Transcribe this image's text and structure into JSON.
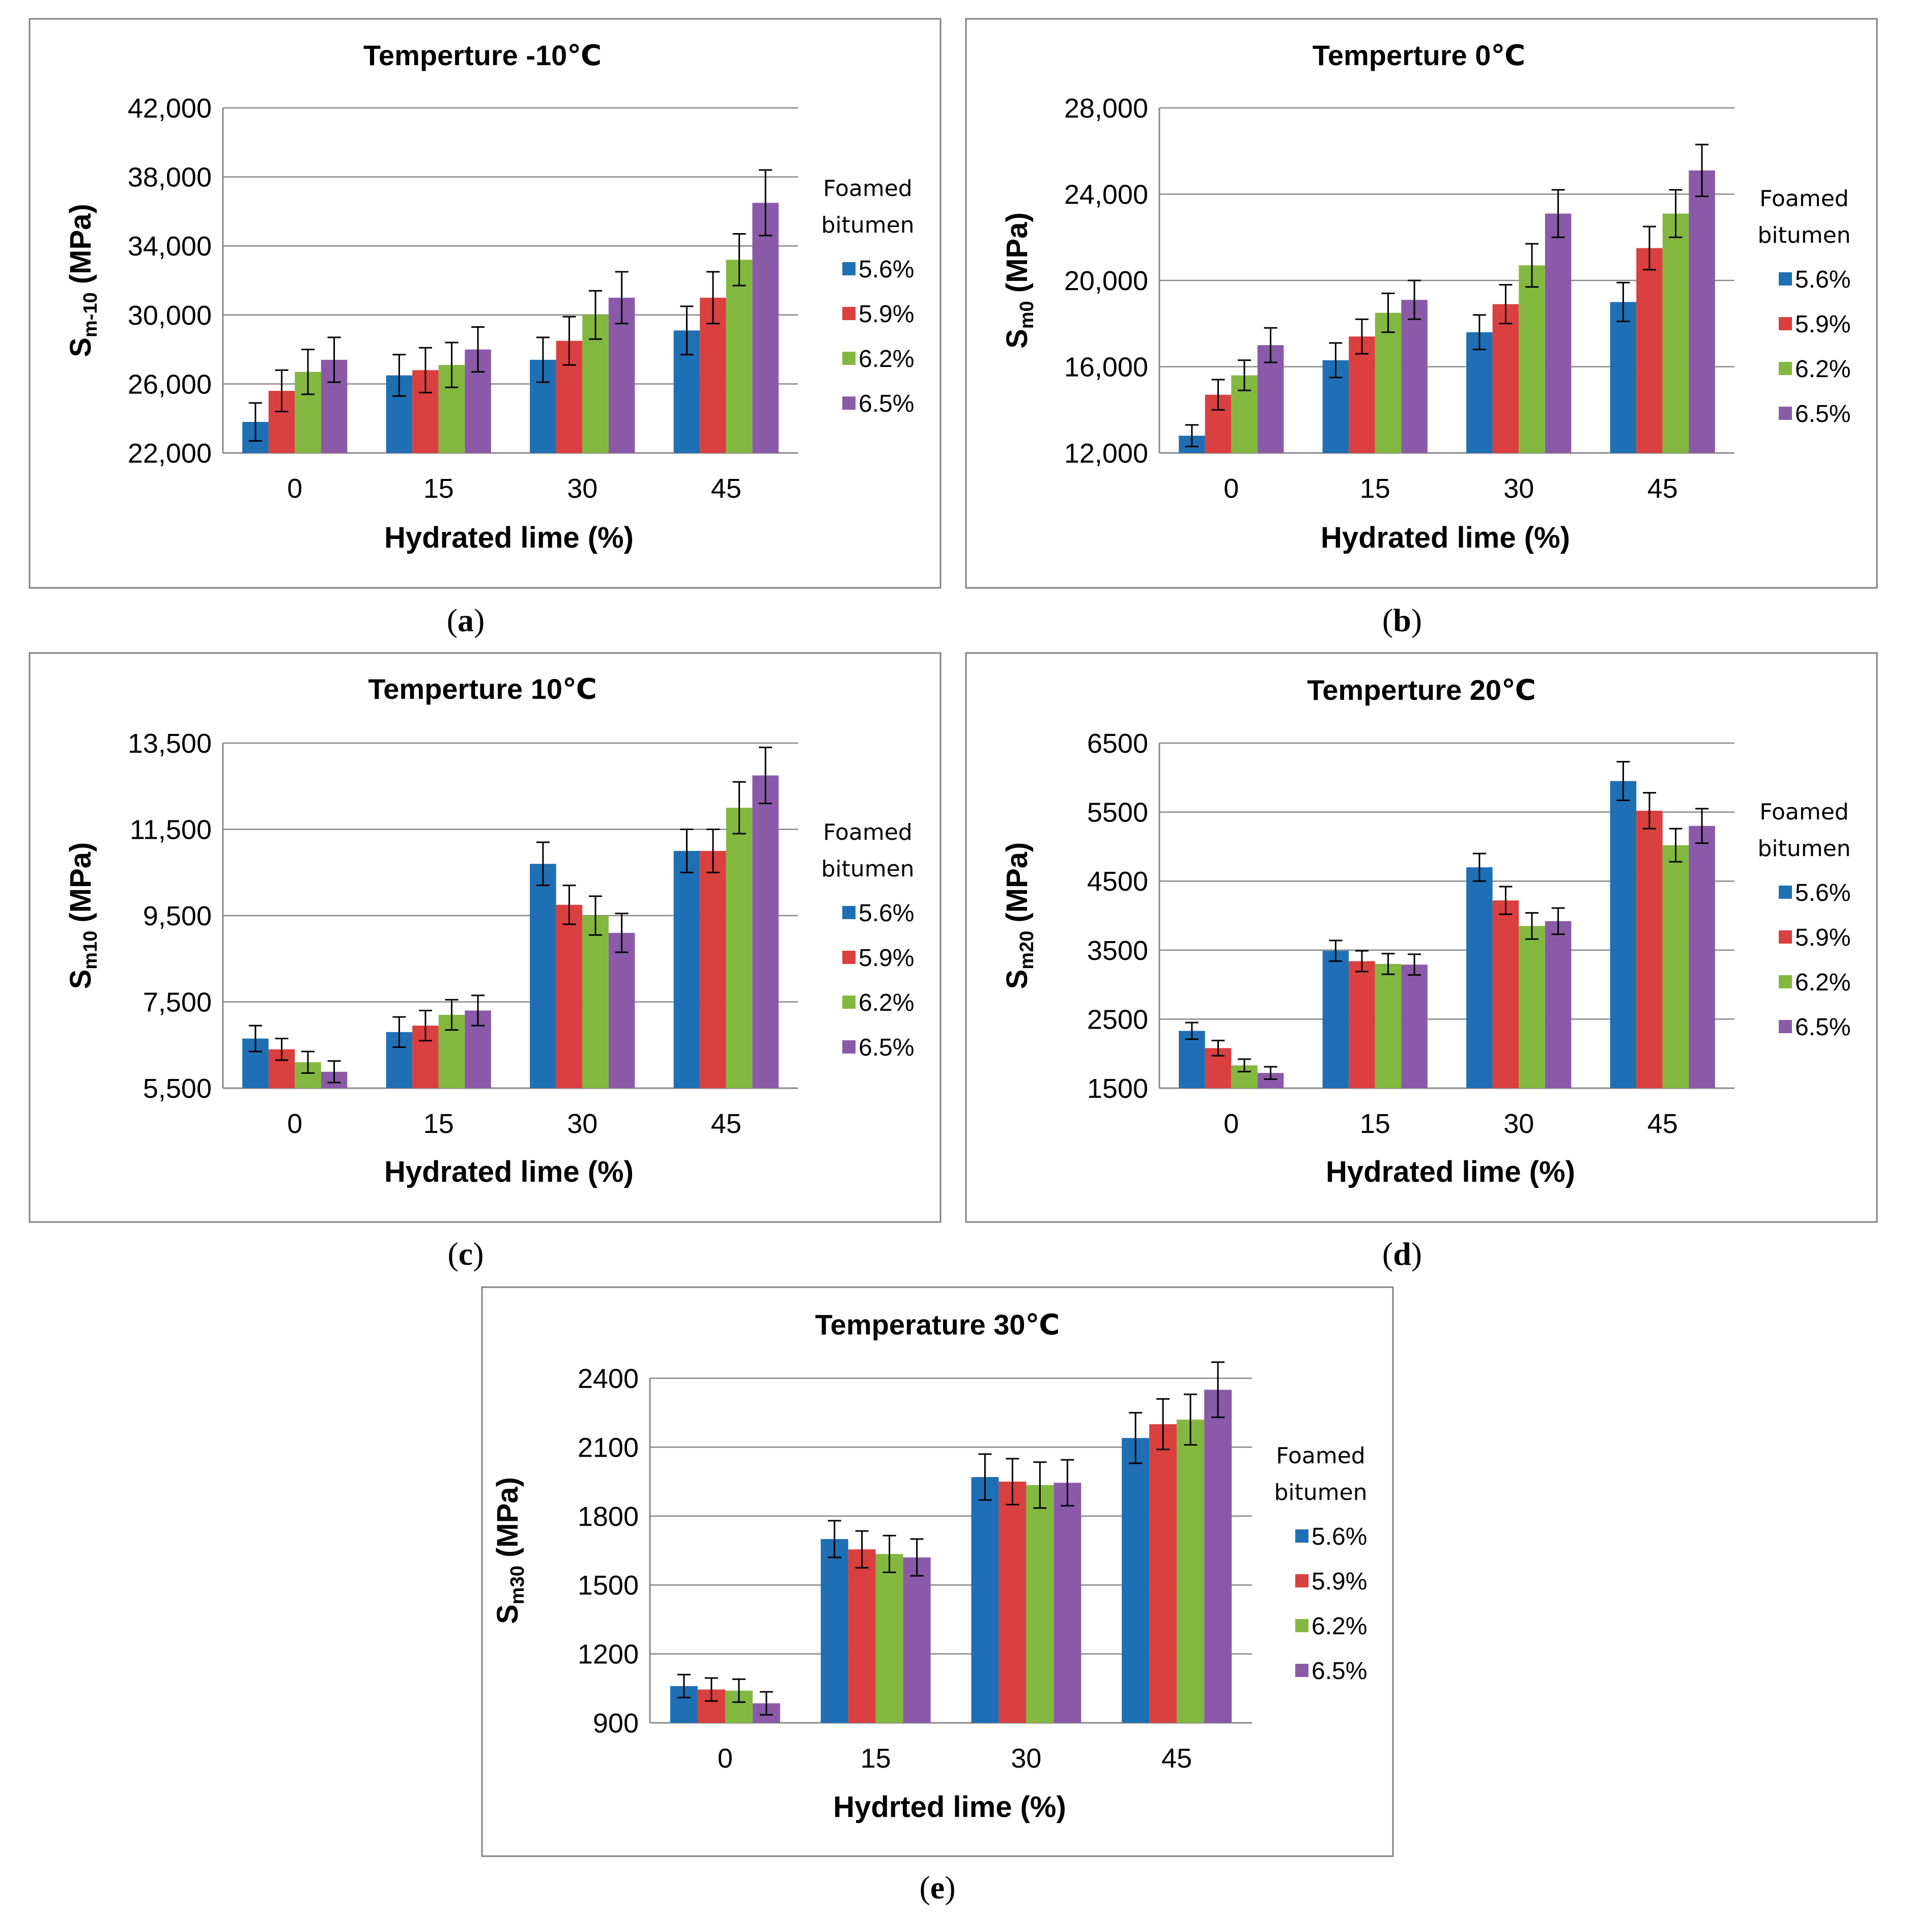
{
  "legend_title_line1": "Foamed",
  "legend_title_line2": "bitumen",
  "colors": {
    "series": [
      "#1f6fb4",
      "#d9403f",
      "#83b840",
      "#8a5aa8"
    ],
    "grid": "#888888",
    "axis": "#888888",
    "frame": "#808080",
    "errorbar": "#000000"
  },
  "chart_data": [
    {
      "type": "bar",
      "title": "Temperture -10℃",
      "ylabel_main": "S",
      "ylabel_sub": "m-10",
      "ylabel_unit": " (MPa)",
      "xlabel": "Hydrated lime (%)",
      "caption_letter": "a",
      "categories": [
        "0",
        "15",
        "30",
        "45"
      ],
      "ylim": [
        22000,
        42000
      ],
      "yticks": [
        22000,
        26000,
        30000,
        34000,
        38000,
        42000
      ],
      "ytick_labels": [
        "22,000",
        "26,000",
        "30,000",
        "34,000",
        "38,000",
        "42,000"
      ],
      "series": [
        {
          "name": "5.6%",
          "values": [
            23800,
            26500,
            27400,
            29100
          ],
          "errors": [
            1100,
            1200,
            1300,
            1400
          ]
        },
        {
          "name": "5.9%",
          "values": [
            25600,
            26800,
            28500,
            31000
          ],
          "errors": [
            1200,
            1300,
            1400,
            1500
          ]
        },
        {
          "name": "6.2%",
          "values": [
            26700,
            27100,
            30000,
            33200
          ],
          "errors": [
            1300,
            1300,
            1400,
            1500
          ]
        },
        {
          "name": "6.5%",
          "values": [
            27400,
            28000,
            31000,
            36500
          ],
          "errors": [
            1300,
            1300,
            1500,
            1900
          ]
        }
      ],
      "grid": true,
      "legend": "right"
    },
    {
      "type": "bar",
      "title": "Temperture 0℃",
      "ylabel_main": "S",
      "ylabel_sub": "m0",
      "ylabel_unit": " (MPa)",
      "xlabel": "Hydrated lime (%)",
      "caption_letter": "b",
      "categories": [
        "0",
        "15",
        "30",
        "45"
      ],
      "ylim": [
        12000,
        28000
      ],
      "yticks": [
        12000,
        16000,
        20000,
        24000,
        28000
      ],
      "ytick_labels": [
        "12,000",
        "16,000",
        "20,000",
        "24,000",
        "28,000"
      ],
      "series": [
        {
          "name": "5.6%",
          "values": [
            12800,
            16300,
            17600,
            19000
          ],
          "errors": [
            500,
            800,
            800,
            900
          ]
        },
        {
          "name": "5.9%",
          "values": [
            14700,
            17400,
            18900,
            21500
          ],
          "errors": [
            700,
            800,
            900,
            1000
          ]
        },
        {
          "name": "6.2%",
          "values": [
            15600,
            18500,
            20700,
            23100
          ],
          "errors": [
            700,
            900,
            1000,
            1100
          ]
        },
        {
          "name": "6.5%",
          "values": [
            17000,
            19100,
            23100,
            25100
          ],
          "errors": [
            800,
            900,
            1100,
            1200
          ]
        }
      ],
      "grid": true,
      "legend": "right"
    },
    {
      "type": "bar",
      "title": "Temperture 10℃",
      "ylabel_main": "S",
      "ylabel_sub": "m10",
      "ylabel_unit": " (MPa)",
      "xlabel": "Hydrated lime (%)",
      "caption_letter": "c",
      "categories": [
        "0",
        "15",
        "30",
        "45"
      ],
      "ylim": [
        5500,
        13500
      ],
      "yticks": [
        5500,
        7500,
        9500,
        11500,
        13500
      ],
      "ytick_labels": [
        "5,500",
        "7,500",
        "9,500",
        "11,500",
        "13,500"
      ],
      "series": [
        {
          "name": "5.6%",
          "values": [
            6650,
            6800,
            10700,
            11000
          ],
          "errors": [
            300,
            350,
            500,
            500
          ]
        },
        {
          "name": "5.9%",
          "values": [
            6400,
            6950,
            9750,
            11000
          ],
          "errors": [
            250,
            350,
            450,
            500
          ]
        },
        {
          "name": "6.2%",
          "values": [
            6100,
            7200,
            9500,
            12000
          ],
          "errors": [
            250,
            350,
            450,
            600
          ]
        },
        {
          "name": "6.5%",
          "values": [
            5880,
            7300,
            9100,
            12750
          ],
          "errors": [
            250,
            350,
            450,
            650
          ]
        }
      ],
      "grid": true,
      "legend": "right"
    },
    {
      "type": "bar",
      "title": "Temperture 20℃",
      "ylabel_main": "S",
      "ylabel_sub": "m20",
      "ylabel_unit": " (MPa)",
      "xlabel": "Hydrated lime (%)",
      "caption_letter": "d",
      "categories": [
        "0",
        "15",
        "30",
        "45"
      ],
      "ylim": [
        1500,
        6500
      ],
      "yticks": [
        1500,
        2500,
        3500,
        4500,
        5500,
        6500
      ],
      "ytick_labels": [
        "1500",
        "2500",
        "3500",
        "4500",
        "5500",
        "6500"
      ],
      "series": [
        {
          "name": "5.6%",
          "values": [
            2330,
            3490,
            4700,
            5950
          ],
          "errors": [
            120,
            150,
            200,
            280
          ]
        },
        {
          "name": "5.9%",
          "values": [
            2080,
            3340,
            4220,
            5520
          ],
          "errors": [
            110,
            150,
            200,
            260
          ]
        },
        {
          "name": "6.2%",
          "values": [
            1830,
            3300,
            3850,
            5020
          ],
          "errors": [
            90,
            150,
            190,
            240
          ]
        },
        {
          "name": "6.5%",
          "values": [
            1720,
            3290,
            3920,
            5300
          ],
          "errors": [
            90,
            150,
            190,
            250
          ]
        }
      ],
      "grid": true,
      "legend": "right"
    },
    {
      "type": "bar",
      "title": "Temperature 30℃",
      "ylabel_main": "S",
      "ylabel_sub": "m30",
      "ylabel_unit": " (MPa)",
      "xlabel": "Hydrted lime (%)",
      "caption_letter": "e",
      "categories": [
        "0",
        "15",
        "30",
        "45"
      ],
      "ylim": [
        900,
        2400
      ],
      "yticks": [
        900,
        1200,
        1500,
        1800,
        2100,
        2400
      ],
      "ytick_labels": [
        "900",
        "1200",
        "1500",
        "1800",
        "2100",
        "2400"
      ],
      "series": [
        {
          "name": "5.6%",
          "values": [
            1060,
            1700,
            1970,
            2140
          ],
          "errors": [
            50,
            80,
            100,
            110
          ]
        },
        {
          "name": "5.9%",
          "values": [
            1045,
            1655,
            1950,
            2200
          ],
          "errors": [
            50,
            80,
            100,
            110
          ]
        },
        {
          "name": "6.2%",
          "values": [
            1040,
            1635,
            1935,
            2220
          ],
          "errors": [
            50,
            80,
            100,
            110
          ]
        },
        {
          "name": "6.5%",
          "values": [
            985,
            1620,
            1945,
            2350
          ],
          "errors": [
            50,
            80,
            100,
            120
          ]
        }
      ],
      "grid": true,
      "legend": "right"
    }
  ]
}
